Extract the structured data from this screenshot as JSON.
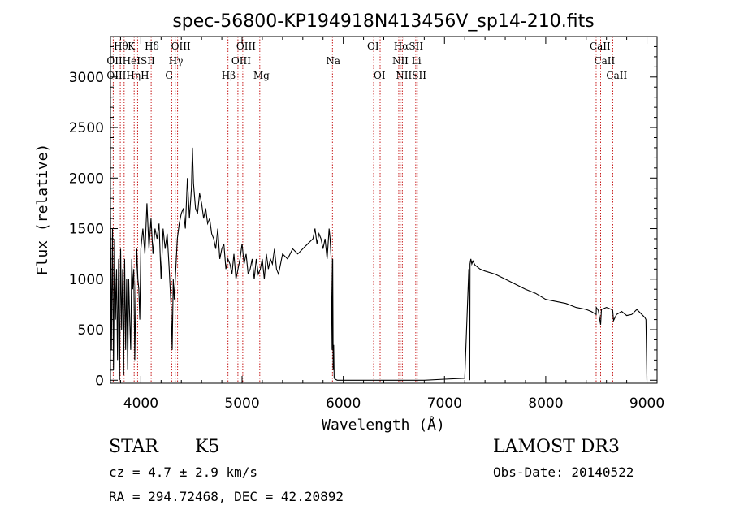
{
  "chart_data": {
    "type": "line",
    "title": "spec-56800-KP194918N413456V_sp14-210.fits",
    "xlabel": "Wavelength (Å)",
    "ylabel": "Flux (relative)",
    "xlim": [
      3700,
      9100
    ],
    "ylim": [
      -30,
      3400
    ],
    "xticks": [
      4000,
      5000,
      6000,
      7000,
      8000,
      9000
    ],
    "yticks": [
      0,
      500,
      1000,
      1500,
      2000,
      2500,
      3000
    ],
    "series": [
      {
        "name": "spectrum",
        "x": [
          3700,
          3710,
          3720,
          3730,
          3740,
          3750,
          3760,
          3770,
          3780,
          3790,
          3800,
          3810,
          3820,
          3830,
          3840,
          3850,
          3860,
          3870,
          3880,
          3890,
          3900,
          3910,
          3920,
          3930,
          3940,
          3950,
          3960,
          3970,
          3980,
          3990,
          4000,
          4020,
          4040,
          4060,
          4080,
          4100,
          4120,
          4140,
          4160,
          4180,
          4200,
          4220,
          4240,
          4260,
          4280,
          4300,
          4310,
          4320,
          4330,
          4340,
          4360,
          4380,
          4400,
          4420,
          4440,
          4460,
          4480,
          4500,
          4510,
          4520,
          4540,
          4560,
          4580,
          4600,
          4620,
          4640,
          4660,
          4680,
          4700,
          4720,
          4740,
          4760,
          4780,
          4800,
          4820,
          4840,
          4860,
          4880,
          4900,
          4920,
          4940,
          4960,
          4980,
          5000,
          5020,
          5040,
          5060,
          5080,
          5100,
          5120,
          5140,
          5160,
          5180,
          5200,
          5220,
          5240,
          5260,
          5280,
          5300,
          5320,
          5340,
          5360,
          5380,
          5400,
          5450,
          5500,
          5550,
          5600,
          5650,
          5700,
          5720,
          5740,
          5760,
          5780,
          5800,
          5820,
          5840,
          5860,
          5870,
          5880,
          5890,
          5895,
          5900,
          5905,
          5910,
          5920,
          5940,
          6000,
          6200,
          6500,
          6800,
          7000,
          7200,
          7240,
          7250,
          7252,
          7260,
          7270,
          7280,
          7300,
          7350,
          7400,
          7500,
          7600,
          7700,
          7800,
          7900,
          8000,
          8100,
          8200,
          8300,
          8400,
          8450,
          8498,
          8500,
          8520,
          8542,
          8550,
          8600,
          8650,
          8662,
          8670,
          8700,
          8750,
          8800,
          8850,
          8900,
          8950,
          8980,
          8990,
          9000
        ],
        "values": [
          1700,
          300,
          1500,
          100,
          1400,
          600,
          1100,
          200,
          1200,
          0,
          1300,
          500,
          1100,
          50,
          1200,
          300,
          1000,
          100,
          1000,
          600,
          300,
          1200,
          900,
          1100,
          200,
          900,
          1300,
          1000,
          900,
          600,
          1300,
          1500,
          1250,
          1750,
          1300,
          1600,
          1250,
          1500,
          1400,
          1550,
          1000,
          1500,
          1300,
          1450,
          1100,
          700,
          300,
          1000,
          800,
          1000,
          1400,
          1550,
          1650,
          1700,
          1500,
          2000,
          1600,
          1900,
          2300,
          1950,
          1700,
          1650,
          1850,
          1750,
          1600,
          1700,
          1550,
          1600,
          1450,
          1400,
          1300,
          1500,
          1200,
          1300,
          1350,
          1100,
          1200,
          1150,
          1050,
          1250,
          1000,
          1100,
          1200,
          1350,
          1150,
          1250,
          1050,
          1100,
          1200,
          1000,
          1200,
          1050,
          1100,
          1200,
          1000,
          1250,
          1100,
          1200,
          1150,
          1300,
          1100,
          1050,
          1150,
          1250,
          1200,
          1300,
          1250,
          1300,
          1350,
          1400,
          1500,
          1350,
          1450,
          1400,
          1300,
          1400,
          1200,
          1500,
          1400,
          1200,
          300,
          1200,
          100,
          350,
          20,
          10,
          0,
          0,
          0,
          0,
          0,
          10,
          20,
          1100,
          0,
          1150,
          1200,
          1150,
          1180,
          1140,
          1100,
          1080,
          1050,
          1000,
          950,
          900,
          860,
          800,
          780,
          760,
          720,
          700,
          680,
          650,
          720,
          690,
          550,
          700,
          720,
          700,
          690,
          590,
          650,
          680,
          640,
          650,
          700,
          650,
          620,
          600,
          0
        ]
      }
    ],
    "lines": [
      {
        "name": "OII",
        "x": 3727
      },
      {
        "name": "Hθ",
        "x": 3797
      },
      {
        "name": "Hη",
        "x": 3835
      },
      {
        "name": "K",
        "x": 3934
      },
      {
        "name": "H",
        "x": 3968
      },
      {
        "name": "Hδ",
        "x": 4102
      },
      {
        "name": "G",
        "x": 4305
      },
      {
        "name": "Hγ",
        "x": 4340
      },
      {
        "name": "OIII",
        "x": 4363
      },
      {
        "name": "Hβ",
        "x": 4861
      },
      {
        "name": "OIII",
        "x": 4959
      },
      {
        "name": "OIII",
        "x": 5007
      },
      {
        "name": "Mg",
        "x": 5175
      },
      {
        "name": "Na",
        "x": 5893
      },
      {
        "name": "OI",
        "x": 6300
      },
      {
        "name": "OI",
        "x": 6364
      },
      {
        "name": "NII",
        "x": 6548
      },
      {
        "name": "Hα",
        "x": 6563
      },
      {
        "name": "NII",
        "x": 6583
      },
      {
        "name": "SII",
        "x": 6716
      },
      {
        "name": "SII",
        "x": 6731
      },
      {
        "name": "CaII",
        "x": 8498
      },
      {
        "name": "CaII",
        "x": 8542
      },
      {
        "name": "CaII",
        "x": 8662
      }
    ],
    "line_labels": [
      {
        "text": "Hθ",
        "x": 3797,
        "row": 1
      },
      {
        "text": "K",
        "x": 3934,
        "row": 1
      },
      {
        "text": "Hδ",
        "x": 4102,
        "row": 1
      },
      {
        "text": "OIII",
        "x": 4363,
        "row": 1
      },
      {
        "text": "OIII",
        "x": 5007,
        "row": 1
      },
      {
        "text": "OI",
        "x": 6300,
        "row": 1
      },
      {
        "text": "HαSII",
        "x": 6563,
        "row": 1
      },
      {
        "text": "CaII",
        "x": 8498,
        "row": 1
      },
      {
        "text": "OIIHeISII",
        "x": 3727,
        "row": 2
      },
      {
        "text": "Hγ",
        "x": 4340,
        "row": 2
      },
      {
        "text": "OIII",
        "x": 4959,
        "row": 2
      },
      {
        "text": "Na",
        "x": 5893,
        "row": 2
      },
      {
        "text": "NII Li",
        "x": 6548,
        "row": 2
      },
      {
        "text": "CaII",
        "x": 8542,
        "row": 2
      },
      {
        "text": "OIIIHηH",
        "x": 3727,
        "row": 3
      },
      {
        "text": "G",
        "x": 4305,
        "row": 3
      },
      {
        "text": "Hβ",
        "x": 4861,
        "row": 3
      },
      {
        "text": "Mg",
        "x": 5175,
        "row": 3
      },
      {
        "text": "OI",
        "x": 6364,
        "row": 3
      },
      {
        "text": "NIISII",
        "x": 6583,
        "row": 3
      },
      {
        "text": "CaII",
        "x": 8662,
        "row": 3
      }
    ]
  },
  "info": {
    "object_class": "STAR",
    "subclass": "K5",
    "survey": "LAMOST DR3",
    "cz": "cz = 4.7 ± 2.9 km/s",
    "obs_date": "Obs-Date: 20140522",
    "coords": "RA = 294.72468, DEC =  42.20892"
  }
}
